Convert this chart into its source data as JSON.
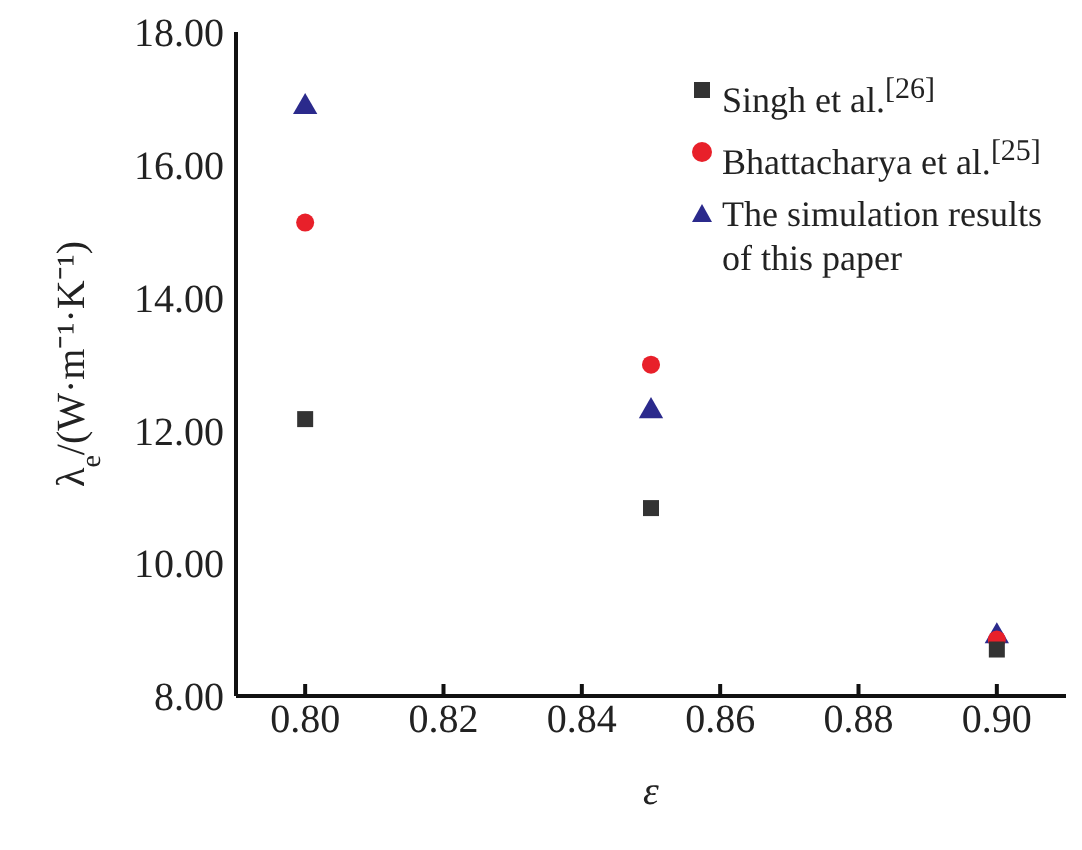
{
  "chart_data": {
    "type": "scatter",
    "xlabel": "ε",
    "ylabel": "λ$_{e}$/(W·m⁻¹·K⁻¹)",
    "x": [
      0.8,
      0.85,
      0.9
    ],
    "series": [
      {
        "name": "Singh et al.$^{[26]}$",
        "color": "#333333",
        "marker": "square",
        "values": [
          12.17,
          10.83,
          8.7
        ]
      },
      {
        "name": "Bhattacharya et al.$^{[25]}$",
        "color": "#e8202a",
        "marker": "circle",
        "values": [
          15.13,
          12.99,
          8.85
        ]
      },
      {
        "name": "The simulation results of this paper",
        "color": "#2b2a8c",
        "marker": "triangle",
        "values": [
          16.87,
          12.29,
          8.9
        ]
      }
    ],
    "xlim": [
      0.79,
      0.91
    ],
    "xticks": [
      {
        "value": 0.8,
        "label": "0.80"
      },
      {
        "value": 0.82,
        "label": "0.82"
      },
      {
        "value": 0.84,
        "label": "0.84"
      },
      {
        "value": 0.86,
        "label": "0.86"
      },
      {
        "value": 0.88,
        "label": "0.88"
      },
      {
        "value": 0.9,
        "label": "0.90"
      }
    ],
    "ylim": [
      8,
      18
    ],
    "yticks": [
      {
        "value": 8,
        "label": "8.00"
      },
      {
        "value": 10,
        "label": "10.00"
      },
      {
        "value": 12,
        "label": "12.00"
      },
      {
        "value": 14,
        "label": "14.00"
      },
      {
        "value": 16,
        "label": "16.00"
      },
      {
        "value": 18,
        "label": "18.00"
      }
    ],
    "grid": false,
    "legend": "top right"
  }
}
